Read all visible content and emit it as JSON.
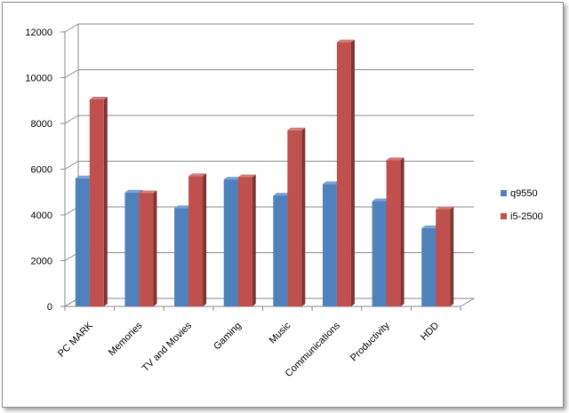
{
  "chart_data": {
    "type": "bar",
    "title": "",
    "xlabel": "",
    "ylabel": "",
    "categories": [
      "PC MARK",
      "Memories",
      "TV and Movies",
      "Gaming",
      "Music",
      "Communications",
      "Productivity",
      "HDD"
    ],
    "series": [
      {
        "name": "q9550",
        "values": [
          5600,
          4980,
          4300,
          5550,
          4850,
          5350,
          4600,
          3420
        ],
        "color": "#4f81bd"
      },
      {
        "name": "i5-2500",
        "values": [
          9050,
          4950,
          5700,
          5650,
          7700,
          11550,
          6400,
          4250
        ],
        "color": "#c0504d"
      }
    ],
    "ylim": [
      0,
      12000
    ],
    "yticks": [
      0,
      2000,
      4000,
      6000,
      8000,
      10000,
      12000
    ],
    "grid": true,
    "legend": "right",
    "style": "3d-clustered-column"
  }
}
